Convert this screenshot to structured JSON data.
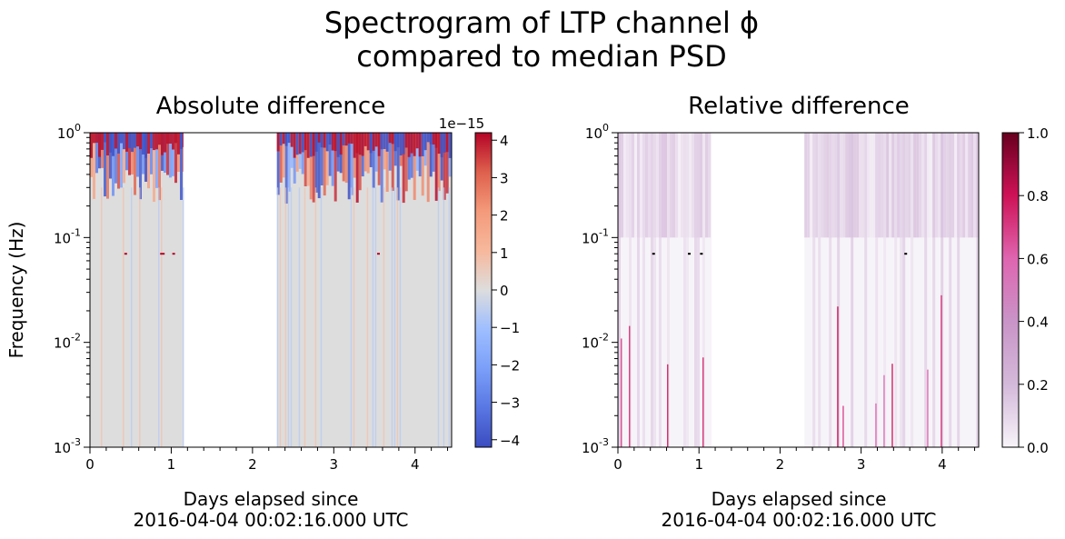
{
  "figure": {
    "suptitle_lines": [
      "Spectrogram of LTP channel ϕ",
      "compared to median PSD"
    ]
  },
  "chart_data": [
    {
      "type": "heatmap",
      "title": "Absolute difference",
      "xlabel_lines": [
        "Days elapsed since",
        "2016-04-04 00:02:16.000 UTC"
      ],
      "ylabel": "Frequency (Hz)",
      "x_scale": "linear",
      "y_scale": "log",
      "xlim": [
        0,
        4.45
      ],
      "ylim": [
        0.001,
        1
      ],
      "x_ticks": [
        0,
        1,
        2,
        3,
        4
      ],
      "y_ticks": [
        {
          "exp": "-3",
          "value": 0.001
        },
        {
          "exp": "-2",
          "value": 0.01
        },
        {
          "exp": "-1",
          "value": 0.1
        },
        {
          "exp": "0",
          "value": 1
        }
      ],
      "data_segments": [
        [
          0,
          1.15
        ],
        [
          2.3,
          4.45
        ]
      ],
      "colormap": "coolwarm",
      "colorbar": {
        "min": -4.2,
        "max": 4.2,
        "ticks": [
          4,
          3,
          2,
          1,
          0,
          -1,
          -2,
          -3,
          -4
        ],
        "tick_labels": [
          "4",
          "3",
          "2",
          "1",
          "0",
          "−1",
          "−2",
          "−3",
          "−4"
        ],
        "offset_label": "1e−15"
      },
      "colors": {
        "low": "#3b4cc0",
        "mid": "#dddddd",
        "high": "#b40426"
      }
    },
    {
      "type": "heatmap",
      "title": "Relative difference",
      "xlabel_lines": [
        "Days elapsed since",
        "2016-04-04 00:02:16.000 UTC"
      ],
      "ylabel": "",
      "x_scale": "linear",
      "y_scale": "log",
      "xlim": [
        0,
        4.45
      ],
      "ylim": [
        0.001,
        1
      ],
      "x_ticks": [
        0,
        1,
        2,
        3,
        4
      ],
      "y_ticks": [
        {
          "exp": "-3",
          "value": 0.001
        },
        {
          "exp": "-2",
          "value": 0.01
        },
        {
          "exp": "-1",
          "value": 0.1
        },
        {
          "exp": "0",
          "value": 1
        }
      ],
      "data_segments": [
        [
          0,
          1.15
        ],
        [
          2.3,
          4.45
        ]
      ],
      "colormap": "PuRd",
      "colorbar": {
        "min": 0,
        "max": 1,
        "ticks": [
          1.0,
          0.8,
          0.6,
          0.4,
          0.2,
          0.0
        ],
        "tick_labels": [
          "1.0",
          "0.8",
          "0.6",
          "0.4",
          "0.2",
          "0.0"
        ],
        "offset_label": ""
      },
      "colors": {
        "low": "#f7f4f9",
        "mid": "#df65b0",
        "high": "#67001f"
      }
    }
  ]
}
